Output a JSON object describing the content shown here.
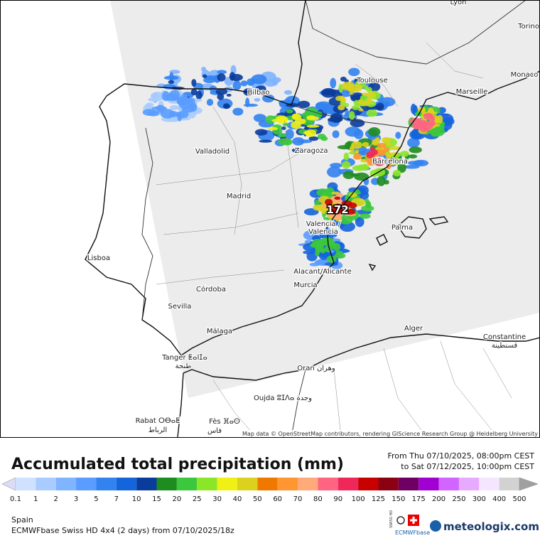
{
  "map": {
    "cities": [
      "Lyon",
      "Torino",
      "Monaco",
      "Marseille",
      "Toulouse",
      "Bilbao",
      "Valladolid",
      "Zaragoza",
      "Barcelona",
      "Madrid",
      "Valencia /",
      "Valencia",
      "Palma",
      "Lisboa",
      "Alacant/Alicante",
      "Murcia",
      "Córdoba",
      "Sevilla",
      "Málaga",
      "Alger",
      "Constantine",
      "قسنطينة",
      "Tanger ⵟⴰⵏⵊⴰ",
      "طنجة",
      "Oran وهران",
      "Oujda ⵓⵊⴷⴰ وجدة",
      "Rabat ⵔⴱⴰⵟ",
      "الرباط",
      "Fès ⴼⴰⵙ",
      "فاس"
    ],
    "max_label": "172",
    "attribution": "Map data © OpenStreetMap contributors, rendering GIScience Research Group @ Heidelberg University"
  },
  "legend": {
    "title": "Accumulated total precipitation (mm)",
    "from": "From Thu 07/10/2025, 08:00pm CEST",
    "to": "to Sat 07/12/2025, 10:00pm CEST",
    "labels": [
      "0.1",
      "1",
      "2",
      "3",
      "5",
      "7",
      "10",
      "15",
      "20",
      "25",
      "30",
      "40",
      "50",
      "60",
      "70",
      "80",
      "90",
      "100",
      "125",
      "150",
      "175",
      "200",
      "250",
      "300",
      "400",
      "500"
    ],
    "colors": [
      "#dcdcf5",
      "#d0e0ff",
      "#a8ccff",
      "#80b4ff",
      "#5a9cff",
      "#3282f0",
      "#1464dc",
      "#0a3c9c",
      "#1e8c1e",
      "#3cc83c",
      "#8ce628",
      "#f0f014",
      "#dcd21e",
      "#f07800",
      "#ff9632",
      "#ffaa78",
      "#ff6482",
      "#f0285a",
      "#c80000",
      "#8c0014",
      "#6e0064",
      "#a000d2",
      "#d264ff",
      "#e6aaff",
      "#f5e6ff",
      "#d2d2d2",
      "#a0a0a0"
    ]
  },
  "footer": {
    "region": "Spain",
    "model": "ECMWFbase Swiss HD 4x4 (2 days) from 07/10/2025/18z",
    "badge_top": "SWISS HD",
    "badge_bottom": "ECMWFbase",
    "brand": "meteologix.com"
  }
}
